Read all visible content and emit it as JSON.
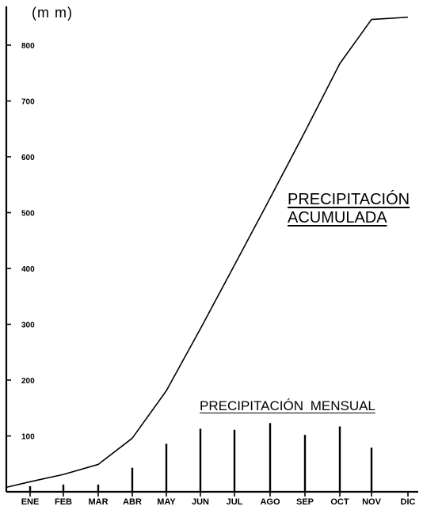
{
  "chart_data": {
    "type": "bar+line",
    "unit_label": "(m m)",
    "categories": [
      "ENE",
      "FEB",
      "MAR",
      "ABR",
      "MAY",
      "JUN",
      "JUL",
      "AGO",
      "SEP",
      "OCT",
      "NOV",
      "DIC"
    ],
    "y_ticks": [
      "100",
      "200",
      "300",
      "400",
      "500",
      "600",
      "700",
      "800"
    ],
    "ylim": [
      0,
      870
    ],
    "grid": false,
    "series": [
      {
        "name": "PRECIPITACIÓN MENSUAL",
        "type": "bar",
        "values": [
          10,
          13,
          13,
          43,
          86,
          113,
          111,
          123,
          102,
          117,
          79,
          0
        ]
      },
      {
        "name": "PRECIPITACIÓN ACUMULADA",
        "type": "line",
        "x": [
          "start",
          "ENE",
          "FEB",
          "MAR",
          "ABR",
          "MAY",
          "JUN",
          "JUL",
          "AGO",
          "SEP",
          "OCT",
          "NOV",
          "DIC"
        ],
        "values": [
          8,
          18,
          31,
          49,
          96,
          181,
          292,
          406,
          526,
          645,
          767,
          846,
          850
        ]
      }
    ],
    "annotations": {
      "accumulated": [
        "PRECIPITACIÓN",
        "ACUMULADA"
      ],
      "monthly": "PRECIPITACIÓN MENSUAL"
    }
  }
}
